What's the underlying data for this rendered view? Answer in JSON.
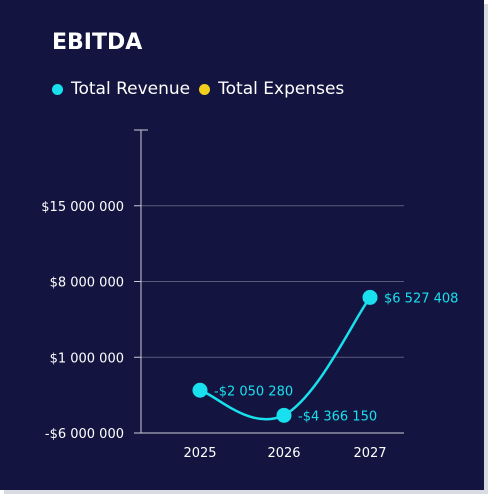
{
  "colors": {
    "background": "#131540",
    "revenue": "#19e0ee",
    "expenses": "#f2cf1d",
    "grid": "#5a5c7e",
    "axis": "#c9cad8"
  },
  "chart_data": {
    "type": "line",
    "title": "EBITDA",
    "legend_position": "top-left",
    "legend": [
      {
        "name": "Total Revenue",
        "color": "#19e0ee"
      },
      {
        "name": "Total Expenses",
        "color": "#f2cf1d"
      }
    ],
    "categories": [
      "2025",
      "2026",
      "2027"
    ],
    "y_ticks": [
      {
        "value": 15000000,
        "label": "$15 000 000"
      },
      {
        "value": 8000000,
        "label": "$8 000 000"
      },
      {
        "value": 1000000,
        "label": "$1 000 000"
      },
      {
        "value": -6000000,
        "label": "-$6 000 000"
      }
    ],
    "ylim": [
      -6000000,
      22000000
    ],
    "grid": true,
    "series": [
      {
        "values": [
          -2050280,
          -4366150,
          6527408
        ],
        "labels": [
          "-$2 050 280",
          "-$4 366 150",
          "$6 527 408"
        ],
        "color": "#19e0ee"
      }
    ]
  }
}
